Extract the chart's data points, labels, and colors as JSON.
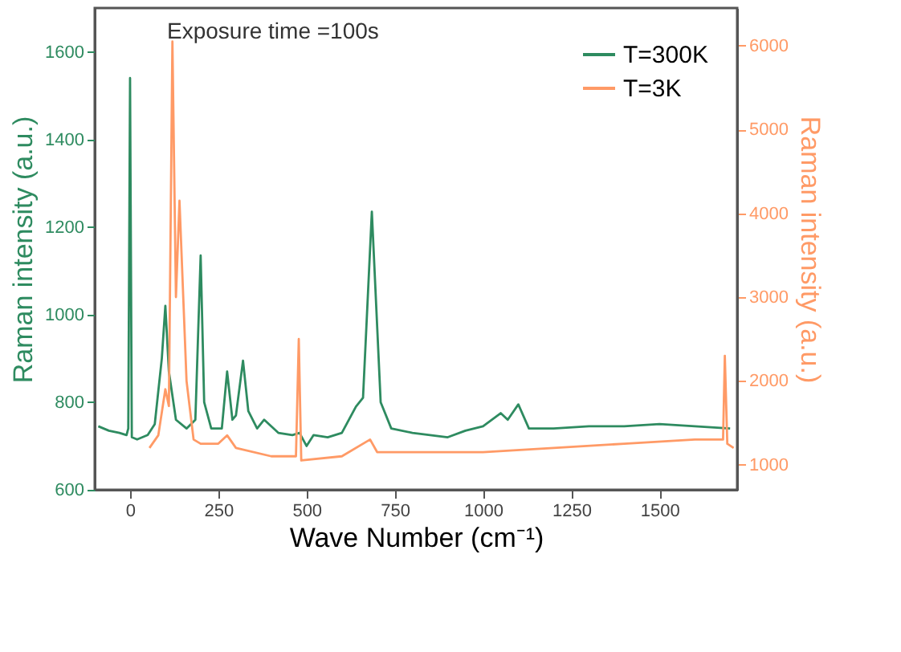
{
  "chart_data": {
    "type": "line",
    "xlabel": "Wave Number (cm⁻¹)",
    "ylabel": "Raman intensity (a.u.)",
    "y2label": "Raman intensity (a.u.)",
    "annotations": [
      "Exposure time =100s"
    ],
    "xlim": [
      -100,
      1720
    ],
    "xticks": [
      0,
      250,
      500,
      750,
      1000,
      1250,
      1500
    ],
    "ylim": [
      600,
      1700
    ],
    "yticks": [
      600,
      800,
      1000,
      1200,
      1400,
      1600
    ],
    "y2lim": [
      700,
      6450
    ],
    "y2ticks": [
      1000,
      2000,
      3000,
      4000,
      5000,
      6000
    ],
    "legend": "top right",
    "grid": false,
    "line_style": "solid",
    "marker": "none",
    "series": [
      {
        "name": "T=300K",
        "color": "#2e8b60",
        "x": [
          -90,
          -60,
          -30,
          -10,
          -5,
          0,
          5,
          20,
          50,
          70,
          90,
          100,
          110,
          130,
          160,
          185,
          200,
          210,
          230,
          260,
          275,
          290,
          300,
          320,
          335,
          360,
          380,
          420,
          460,
          480,
          500,
          520,
          560,
          600,
          640,
          660,
          685,
          710,
          740,
          800,
          900,
          950,
          1000,
          1050,
          1070,
          1100,
          1130,
          1200,
          1300,
          1400,
          1500,
          1600,
          1700
        ],
        "values": [
          745,
          735,
          730,
          725,
          740,
          1540,
          720,
          715,
          725,
          750,
          900,
          1020,
          870,
          760,
          740,
          760,
          1135,
          800,
          740,
          740,
          870,
          760,
          770,
          895,
          780,
          740,
          760,
          730,
          725,
          730,
          700,
          725,
          720,
          730,
          790,
          810,
          1235,
          800,
          740,
          730,
          720,
          735,
          745,
          775,
          760,
          795,
          740,
          740,
          745,
          745,
          750,
          745,
          740
        ]
      },
      {
        "name": "T=3K",
        "color": "#ff9a66",
        "axis": "y2",
        "x": [
          55,
          80,
          100,
          110,
          120,
          130,
          140,
          160,
          180,
          200,
          250,
          275,
          300,
          400,
          470,
          478,
          485,
          600,
          680,
          700,
          800,
          1000,
          1200,
          1400,
          1600,
          1680,
          1685,
          1692,
          1710
        ],
        "values": [
          1200,
          1350,
          1900,
          1700,
          6050,
          3000,
          4150,
          2000,
          1300,
          1250,
          1250,
          1350,
          1200,
          1100,
          1100,
          2500,
          1050,
          1100,
          1300,
          1150,
          1150,
          1150,
          1200,
          1250,
          1300,
          1300,
          2300,
          1250,
          1200
        ]
      }
    ]
  }
}
